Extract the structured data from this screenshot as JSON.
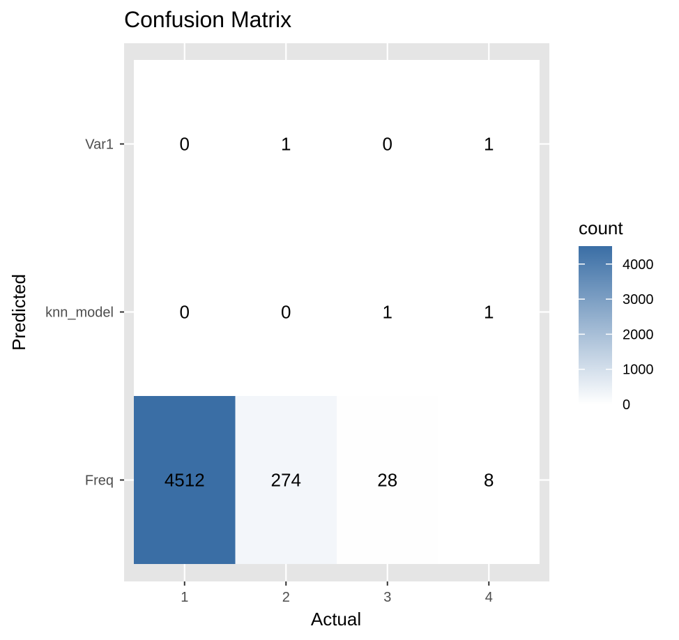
{
  "chart_data": {
    "type": "heatmap",
    "title": "Confusion Matrix",
    "xlabel": "Actual",
    "ylabel": "Predicted",
    "x_categories": [
      "1",
      "2",
      "3",
      "4"
    ],
    "y_categories": [
      "Var1",
      "knn_model",
      "Freq"
    ],
    "cells": [
      {
        "x": "1",
        "y": "Var1",
        "label": "0",
        "fill": false
      },
      {
        "x": "2",
        "y": "Var1",
        "label": "1",
        "fill": false
      },
      {
        "x": "3",
        "y": "Var1",
        "label": "0",
        "fill": false
      },
      {
        "x": "4",
        "y": "Var1",
        "label": "1",
        "fill": false
      },
      {
        "x": "1",
        "y": "knn_model",
        "label": "0",
        "fill": false
      },
      {
        "x": "2",
        "y": "knn_model",
        "label": "0",
        "fill": false
      },
      {
        "x": "3",
        "y": "knn_model",
        "label": "1",
        "fill": false
      },
      {
        "x": "4",
        "y": "knn_model",
        "label": "1",
        "fill": false
      },
      {
        "x": "1",
        "y": "Freq",
        "label": "4512",
        "count": 4512,
        "fill": true
      },
      {
        "x": "2",
        "y": "Freq",
        "label": "274",
        "count": 274,
        "fill": true
      },
      {
        "x": "3",
        "y": "Freq",
        "label": "28",
        "count": 28,
        "fill": true
      },
      {
        "x": "4",
        "y": "Freq",
        "label": "8",
        "count": 8,
        "fill": true
      }
    ],
    "legend": {
      "title": "count",
      "position": "right",
      "ticks": [
        0,
        1000,
        2000,
        3000,
        4000
      ],
      "range": [
        0,
        4512
      ],
      "low_color": "#ffffff",
      "high_color": "#3a6ea5"
    },
    "colors": {
      "panel_background": "#e5e5e5",
      "grid": "#ffffff",
      "tick_text": "#4d4d4d"
    },
    "grid": true
  }
}
